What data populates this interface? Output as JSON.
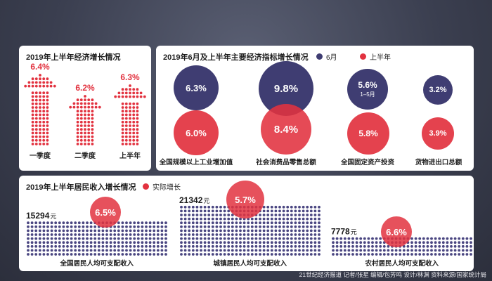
{
  "colors": {
    "red": "#e2323f",
    "navy": "#3f3d72",
    "dots": "#4a4681"
  },
  "panel1": {
    "title": "2019年上半年经济增长情况"
  },
  "panel2": {
    "title": "2019年6月及上半年主要经济指标增长情况",
    "legend_june": "6月",
    "legend_half": "上半年",
    "items": [
      {
        "june": "6.3%",
        "june_note": "",
        "half": "6.0%",
        "label": "全国规模以上工业增加值"
      },
      {
        "june": "9.8%",
        "june_note": "",
        "half": "8.4%",
        "label": "社会消费品零售总额"
      },
      {
        "june": "5.6%",
        "june_note": "1–5月",
        "half": "5.8%",
        "label": "全国固定资产投资"
      },
      {
        "june": "3.2%",
        "june_note": "",
        "half": "3.9%",
        "label": "货物进出口总额"
      }
    ]
  },
  "panel3": {
    "title": "2019年上半年居民收入增长情况",
    "legend": "实际增长",
    "items": [
      {
        "income": "15294",
        "unit": "元",
        "growth": "6.5%",
        "label": "全国居民人均可支配收入"
      },
      {
        "income": "21342",
        "unit": "元",
        "growth": "5.7%",
        "label": "城镇居民人均可支配收入"
      },
      {
        "income": "7778",
        "unit": "元",
        "growth": "6.6%",
        "label": "农村居民人均可支配收入"
      }
    ]
  },
  "footer": "21世纪经济报道 记者/张星  编辑/包芳鸣  设计/林渊  资料来源/国家统计局",
  "chart_data": [
    {
      "type": "bar",
      "title": "2019年上半年经济增长情况",
      "categories": [
        "一季度",
        "二季度",
        "上半年"
      ],
      "values": [
        6.4,
        6.2,
        6.3
      ],
      "value_labels": [
        "6.4%",
        "6.2%",
        "6.3%"
      ]
    },
    {
      "type": "scatter",
      "title": "2019年6月及上半年主要经济指标增长情况",
      "categories": [
        "全国规模以上工业增加值",
        "社会消费品零售总额",
        "全国固定资产投资",
        "货物进出口总额"
      ],
      "series": [
        {
          "name": "6月",
          "values": [
            6.3,
            9.8,
            5.6,
            3.2
          ]
        },
        {
          "name": "上半年",
          "values": [
            6.0,
            8.4,
            5.8,
            3.9
          ]
        }
      ]
    },
    {
      "type": "bar",
      "title": "2019年上半年居民收入增长情况",
      "categories": [
        "全国居民人均可支配收入",
        "城镇居民人均可支配收入",
        "农村居民人均可支配收入"
      ],
      "values": [
        15294,
        21342,
        7778
      ],
      "series": [
        {
          "name": "实际增长",
          "values": [
            6.5,
            5.7,
            6.6
          ]
        }
      ]
    }
  ]
}
